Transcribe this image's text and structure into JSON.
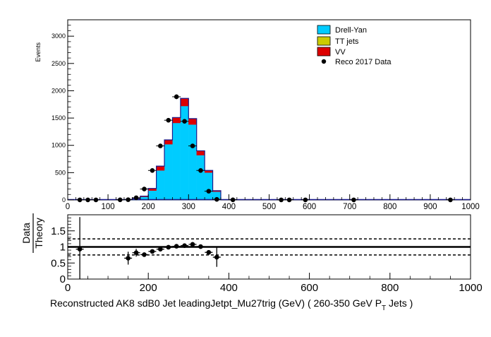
{
  "chart_data": [
    {
      "type": "bar",
      "ylabel": "Events",
      "xlim": [
        0,
        1000
      ],
      "ylim": [
        0,
        3300
      ],
      "xticks": [
        0,
        100,
        200,
        300,
        400,
        500,
        600,
        700,
        800,
        900,
        1000
      ],
      "yticks": [
        0,
        500,
        1000,
        1500,
        2000,
        2500,
        3000
      ],
      "legend_position": "top-right",
      "legend": [
        {
          "label": "Drell-Yan",
          "color": "#00ccff",
          "kind": "box"
        },
        {
          "label": "TT jets",
          "color": "#cccc00",
          "kind": "box"
        },
        {
          "label": "VV",
          "color": "#dd0000",
          "kind": "box"
        },
        {
          "label": "Reco 2017 Data",
          "color": "#000000",
          "kind": "marker"
        }
      ],
      "bin_width": 20,
      "bins_low": [
        140,
        160,
        180,
        200,
        220,
        240,
        260,
        280,
        300,
        320,
        340,
        360
      ],
      "series": [
        {
          "name": "Drell-Yan",
          "color": "#00ccff",
          "values": [
            5,
            20,
            55,
            170,
            540,
            1020,
            1410,
            1720,
            1380,
            820,
            500,
            150
          ]
        },
        {
          "name": "TT jets",
          "color": "#cccc00",
          "values": [
            0,
            0,
            0,
            0,
            0,
            0,
            0,
            0,
            0,
            0,
            0,
            0
          ]
        },
        {
          "name": "VV",
          "color": "#dd0000",
          "values": [
            2,
            5,
            15,
            40,
            80,
            80,
            100,
            140,
            110,
            80,
            40,
            20
          ]
        }
      ],
      "data_points": {
        "name": "Reco 2017 Data",
        "x": [
          30,
          50,
          70,
          130,
          150,
          170,
          190,
          210,
          230,
          250,
          270,
          290,
          310,
          330,
          350,
          370,
          410,
          530,
          550,
          590,
          710,
          950
        ],
        "y": [
          1,
          1,
          1,
          2,
          5,
          40,
          200,
          540,
          990,
          1460,
          1890,
          1440,
          990,
          540,
          160,
          10,
          2,
          1,
          1,
          1,
          1,
          1
        ]
      }
    },
    {
      "type": "scatter",
      "xlabel": "Reconstructed AK8 sdB0 Jet leadingJetpt_Mu27trig (GeV) ( 260-350 GeV P",
      "xlabel_sub": "T",
      "xlabel_tail": " Jets  )",
      "ylabel_num": "Data",
      "ylabel_den": "Theory",
      "xlim": [
        0,
        1000
      ],
      "ylim": [
        0,
        2
      ],
      "xticks": [
        0,
        200,
        400,
        600,
        800,
        1000
      ],
      "yticks": [
        0,
        0.5,
        1,
        1.5
      ],
      "reference_line": 1,
      "band_lines": [
        0.75,
        1.25
      ],
      "x": [
        30,
        150,
        170,
        190,
        210,
        230,
        250,
        270,
        290,
        310,
        330,
        350,
        370
      ],
      "y": [
        0.93,
        0.65,
        0.82,
        0.76,
        0.86,
        0.93,
        0.99,
        1.02,
        1.04,
        1.08,
        1.01,
        0.83,
        0.68
      ],
      "yerr": [
        1.0,
        0.2,
        0.12,
        0.06,
        0.03,
        0.03,
        0.03,
        0.03,
        0.03,
        0.03,
        0.04,
        0.06,
        0.3
      ]
    }
  ]
}
